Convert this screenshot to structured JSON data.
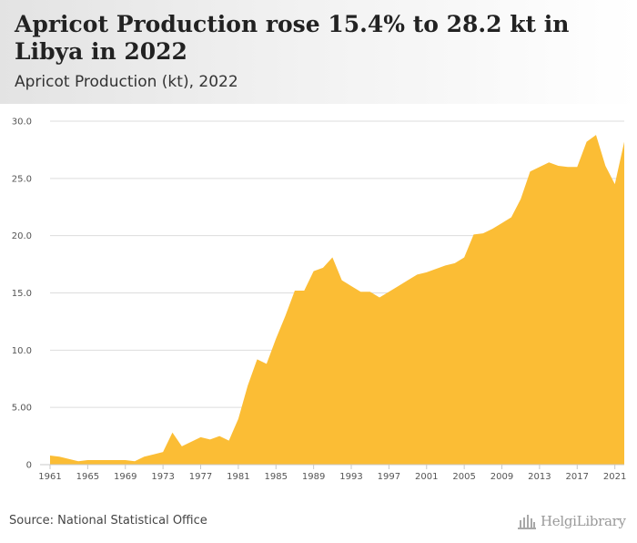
{
  "title": "Apricot Production rose 15.4% to 28.2 kt in Libya in 2022",
  "subtitle": "Apricot Production (kt), 2022",
  "source": "Source: National Statistical Office",
  "logo_text": "HelgiLibrary",
  "colors": {
    "fill": "#fbbd35",
    "grid": "#dddddd",
    "text": "#555555"
  },
  "chart_data": {
    "type": "area",
    "title": "Apricot Production rose 15.4% to 28.2 kt in Libya in 2022",
    "subtitle": "Apricot Production (kt), 2022",
    "xlabel": "",
    "ylabel": "",
    "xlim": [
      1961,
      2022
    ],
    "ylim": [
      0,
      30
    ],
    "grid": true,
    "legend": "none",
    "y_ticks": [
      {
        "value": 0,
        "label": "0"
      },
      {
        "value": 5,
        "label": "5.00"
      },
      {
        "value": 10,
        "label": "10.0"
      },
      {
        "value": 15,
        "label": "15.0"
      },
      {
        "value": 20,
        "label": "20.0"
      },
      {
        "value": 25,
        "label": "25.0"
      },
      {
        "value": 30,
        "label": "30.0"
      }
    ],
    "x_ticks": [
      "1961",
      "1965",
      "1969",
      "1973",
      "1977",
      "1981",
      "1985",
      "1989",
      "1993",
      "1997",
      "2001",
      "2005",
      "2009",
      "2013",
      "2017",
      "2021"
    ],
    "x": [
      1961,
      1962,
      1963,
      1964,
      1965,
      1966,
      1967,
      1968,
      1969,
      1970,
      1971,
      1972,
      1973,
      1974,
      1975,
      1976,
      1977,
      1978,
      1979,
      1980,
      1981,
      1982,
      1983,
      1984,
      1985,
      1986,
      1987,
      1988,
      1989,
      1990,
      1991,
      1992,
      1993,
      1994,
      1995,
      1996,
      1997,
      1998,
      1999,
      2000,
      2001,
      2002,
      2003,
      2004,
      2005,
      2006,
      2007,
      2008,
      2009,
      2010,
      2011,
      2012,
      2013,
      2014,
      2015,
      2016,
      2017,
      2018,
      2019,
      2020,
      2021,
      2022
    ],
    "values": [
      0.8,
      0.7,
      0.5,
      0.3,
      0.4,
      0.4,
      0.4,
      0.4,
      0.4,
      0.3,
      0.7,
      0.9,
      1.1,
      2.8,
      1.6,
      2.0,
      2.4,
      2.2,
      2.5,
      2.1,
      4.0,
      6.9,
      9.2,
      8.8,
      11.0,
      13.0,
      15.2,
      15.2,
      16.9,
      17.2,
      18.1,
      16.1,
      15.6,
      15.1,
      15.1,
      14.6,
      15.1,
      15.6,
      16.1,
      16.6,
      16.8,
      17.1,
      17.4,
      17.6,
      18.1,
      20.1,
      20.2,
      20.6,
      21.1,
      21.6,
      23.2,
      25.6,
      26.0,
      26.4,
      26.1,
      26.0,
      26.0,
      28.2,
      28.8,
      26.1,
      24.5,
      28.2
    ]
  }
}
